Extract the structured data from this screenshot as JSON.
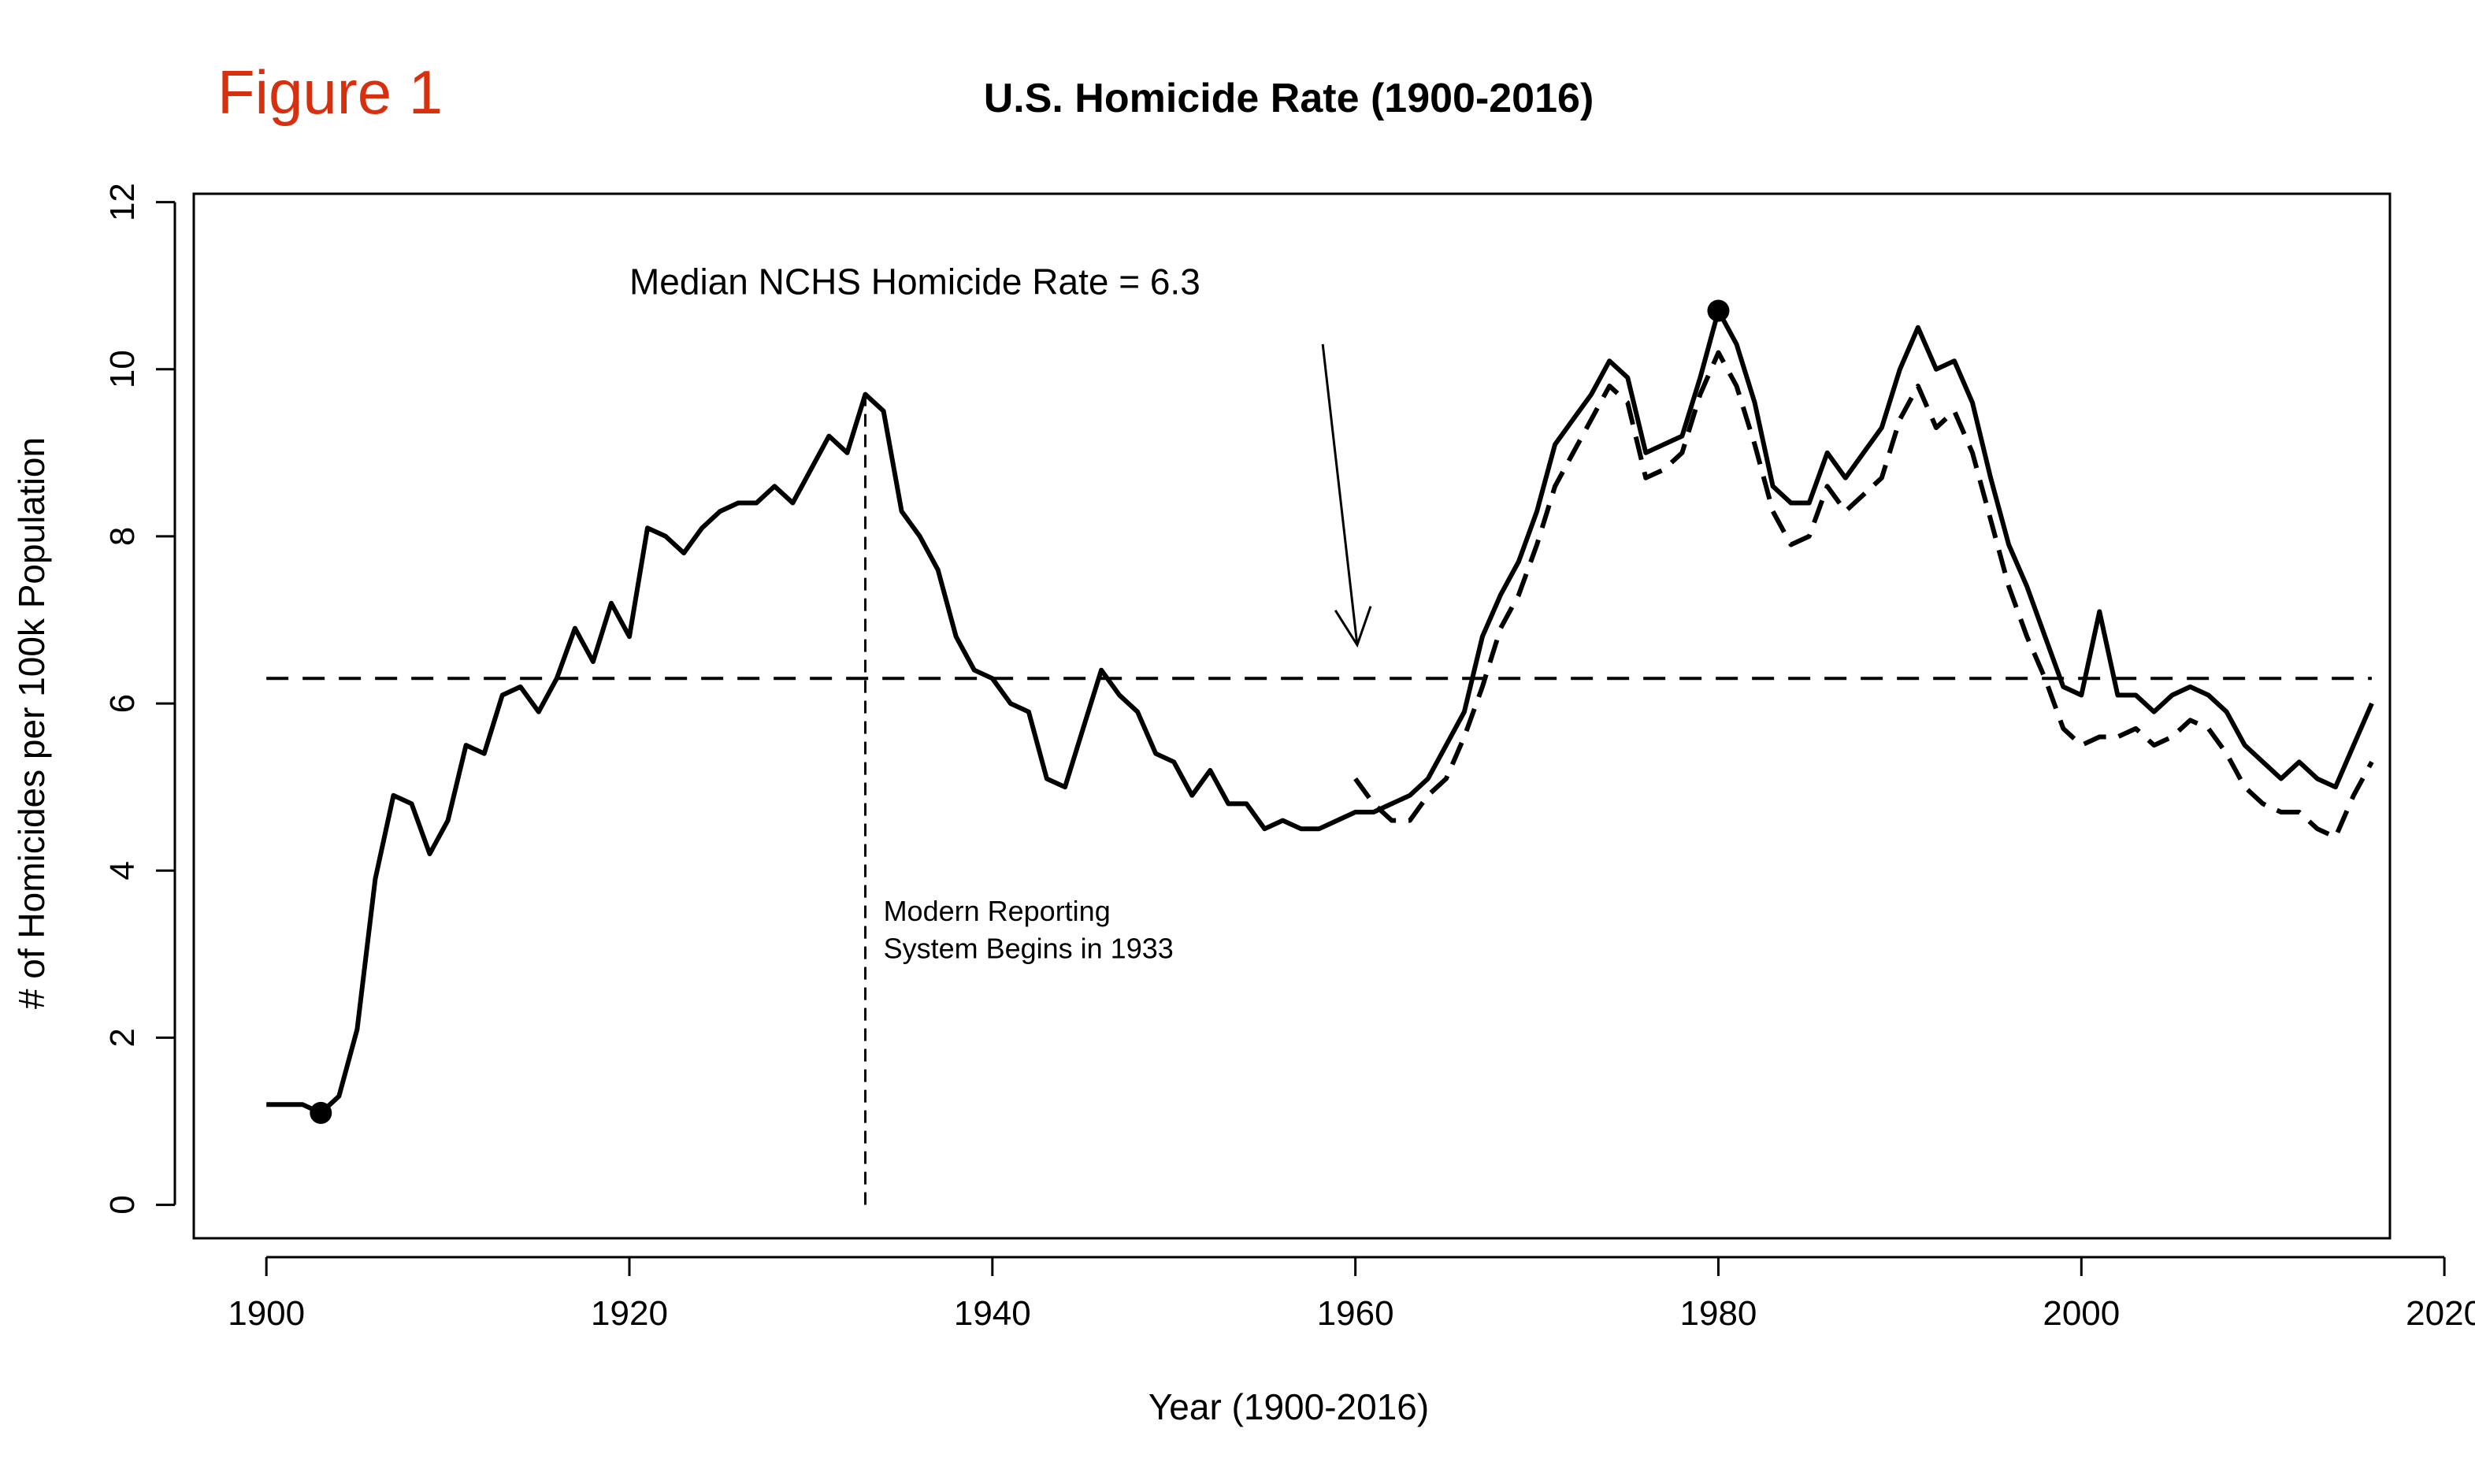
{
  "figure_label": "Figure 1",
  "colors": {
    "figure_label": "#d6300f",
    "ink": "#000000",
    "background": "#ffffff"
  },
  "chart_data": {
    "type": "line",
    "title": "U.S. Homicide Rate (1900-2016)",
    "xlabel": "Year (1900-2016)",
    "ylabel": "# of Homicides per 100k Population",
    "xlim": [
      1896,
      2017
    ],
    "ylim": [
      -0.4,
      12.1
    ],
    "xticks": [
      1900,
      1920,
      1940,
      1960,
      1980,
      2000,
      2020
    ],
    "yticks": [
      0,
      2,
      4,
      6,
      8,
      10,
      12
    ],
    "grid": false,
    "legend": "none",
    "series": [
      {
        "style": "solid",
        "x": [
          1900,
          1901,
          1902,
          1903,
          1904,
          1905,
          1906,
          1907,
          1908,
          1909,
          1910,
          1911,
          1912,
          1913,
          1914,
          1915,
          1916,
          1917,
          1918,
          1919,
          1920,
          1921,
          1922,
          1923,
          1924,
          1925,
          1926,
          1927,
          1928,
          1929,
          1930,
          1931,
          1932,
          1933,
          1934,
          1935,
          1936,
          1937,
          1938,
          1939,
          1940,
          1941,
          1942,
          1943,
          1944,
          1945,
          1946,
          1947,
          1948,
          1949,
          1950,
          1951,
          1952,
          1953,
          1954,
          1955,
          1956,
          1957,
          1958,
          1959,
          1960,
          1961,
          1962,
          1963,
          1964,
          1965,
          1966,
          1967,
          1968,
          1969,
          1970,
          1971,
          1972,
          1973,
          1974,
          1975,
          1976,
          1977,
          1978,
          1979,
          1980,
          1981,
          1982,
          1983,
          1984,
          1985,
          1986,
          1987,
          1988,
          1989,
          1990,
          1991,
          1992,
          1993,
          1994,
          1995,
          1996,
          1997,
          1998,
          1999,
          2000,
          2001,
          2002,
          2003,
          2004,
          2005,
          2006,
          2007,
          2008,
          2009,
          2010,
          2011,
          2012,
          2013,
          2014,
          2015,
          2016
        ],
        "y": [
          1.2,
          1.2,
          1.2,
          1.1,
          1.3,
          2.1,
          3.9,
          4.9,
          4.8,
          4.2,
          4.6,
          5.5,
          5.4,
          6.1,
          6.2,
          5.9,
          6.3,
          6.9,
          6.5,
          7.2,
          6.8,
          8.1,
          8.0,
          7.8,
          8.1,
          8.3,
          8.4,
          8.4,
          8.6,
          8.4,
          8.8,
          9.2,
          9.0,
          9.7,
          9.5,
          8.3,
          8.0,
          7.6,
          6.8,
          6.4,
          6.3,
          6.0,
          5.9,
          5.1,
          5.0,
          5.7,
          6.4,
          6.1,
          5.9,
          5.4,
          5.3,
          4.9,
          5.2,
          4.8,
          4.8,
          4.5,
          4.6,
          4.5,
          4.5,
          4.6,
          4.7,
          4.7,
          4.8,
          4.9,
          5.1,
          5.5,
          5.9,
          6.8,
          7.3,
          7.7,
          8.3,
          9.1,
          9.4,
          9.7,
          10.1,
          9.9,
          9.0,
          9.1,
          9.2,
          9.9,
          10.7,
          10.3,
          9.6,
          8.6,
          8.4,
          8.4,
          9.0,
          8.7,
          9.0,
          9.3,
          10.0,
          10.5,
          10.0,
          10.1,
          9.6,
          8.7,
          7.9,
          7.4,
          6.8,
          6.2,
          6.1,
          7.1,
          6.1,
          6.1,
          5.9,
          6.1,
          6.2,
          6.1,
          5.9,
          5.5,
          5.3,
          5.1,
          5.3,
          5.1,
          5.0,
          5.5,
          6.0
        ]
      },
      {
        "style": "dashed",
        "x": [
          1960,
          1961,
          1962,
          1963,
          1964,
          1965,
          1966,
          1967,
          1968,
          1969,
          1970,
          1971,
          1972,
          1973,
          1974,
          1975,
          1976,
          1977,
          1978,
          1979,
          1980,
          1981,
          1982,
          1983,
          1984,
          1985,
          1986,
          1987,
          1988,
          1989,
          1990,
          1991,
          1992,
          1993,
          1994,
          1995,
          1996,
          1997,
          1998,
          1999,
          2000,
          2001,
          2002,
          2003,
          2004,
          2005,
          2006,
          2007,
          2008,
          2009,
          2010,
          2011,
          2012,
          2013,
          2014,
          2015,
          2016
        ],
        "y": [
          5.1,
          4.8,
          4.6,
          4.6,
          4.9,
          5.1,
          5.6,
          6.2,
          6.9,
          7.3,
          7.9,
          8.6,
          9.0,
          9.4,
          9.8,
          9.6,
          8.7,
          8.8,
          9.0,
          9.7,
          10.2,
          9.8,
          9.1,
          8.3,
          7.9,
          8.0,
          8.6,
          8.3,
          8.5,
          8.7,
          9.4,
          9.8,
          9.3,
          9.5,
          9.0,
          8.2,
          7.4,
          6.8,
          6.3,
          5.7,
          5.5,
          5.6,
          5.6,
          5.7,
          5.5,
          5.6,
          5.8,
          5.7,
          5.4,
          5.0,
          4.8,
          4.7,
          4.7,
          4.5,
          4.4,
          4.9,
          5.3
        ]
      }
    ],
    "median_line": {
      "value": 6.3,
      "x_range": [
        1900,
        2016
      ]
    },
    "vertical_line": {
      "x": 1933,
      "y_range": [
        0,
        9.7
      ]
    },
    "highlight_points": [
      {
        "x": 1903,
        "y": 1.1
      },
      {
        "x": 1980,
        "y": 10.7
      }
    ],
    "annotations": {
      "median_label": "Median NCHS Homicide Rate = 6.3",
      "arrow": {
        "from": [
          1958.2,
          10.3
        ],
        "to": [
          1960.1,
          6.7
        ]
      },
      "reporting_note_line1": "Modern Reporting",
      "reporting_note_line2": "System Begins in 1933"
    }
  }
}
